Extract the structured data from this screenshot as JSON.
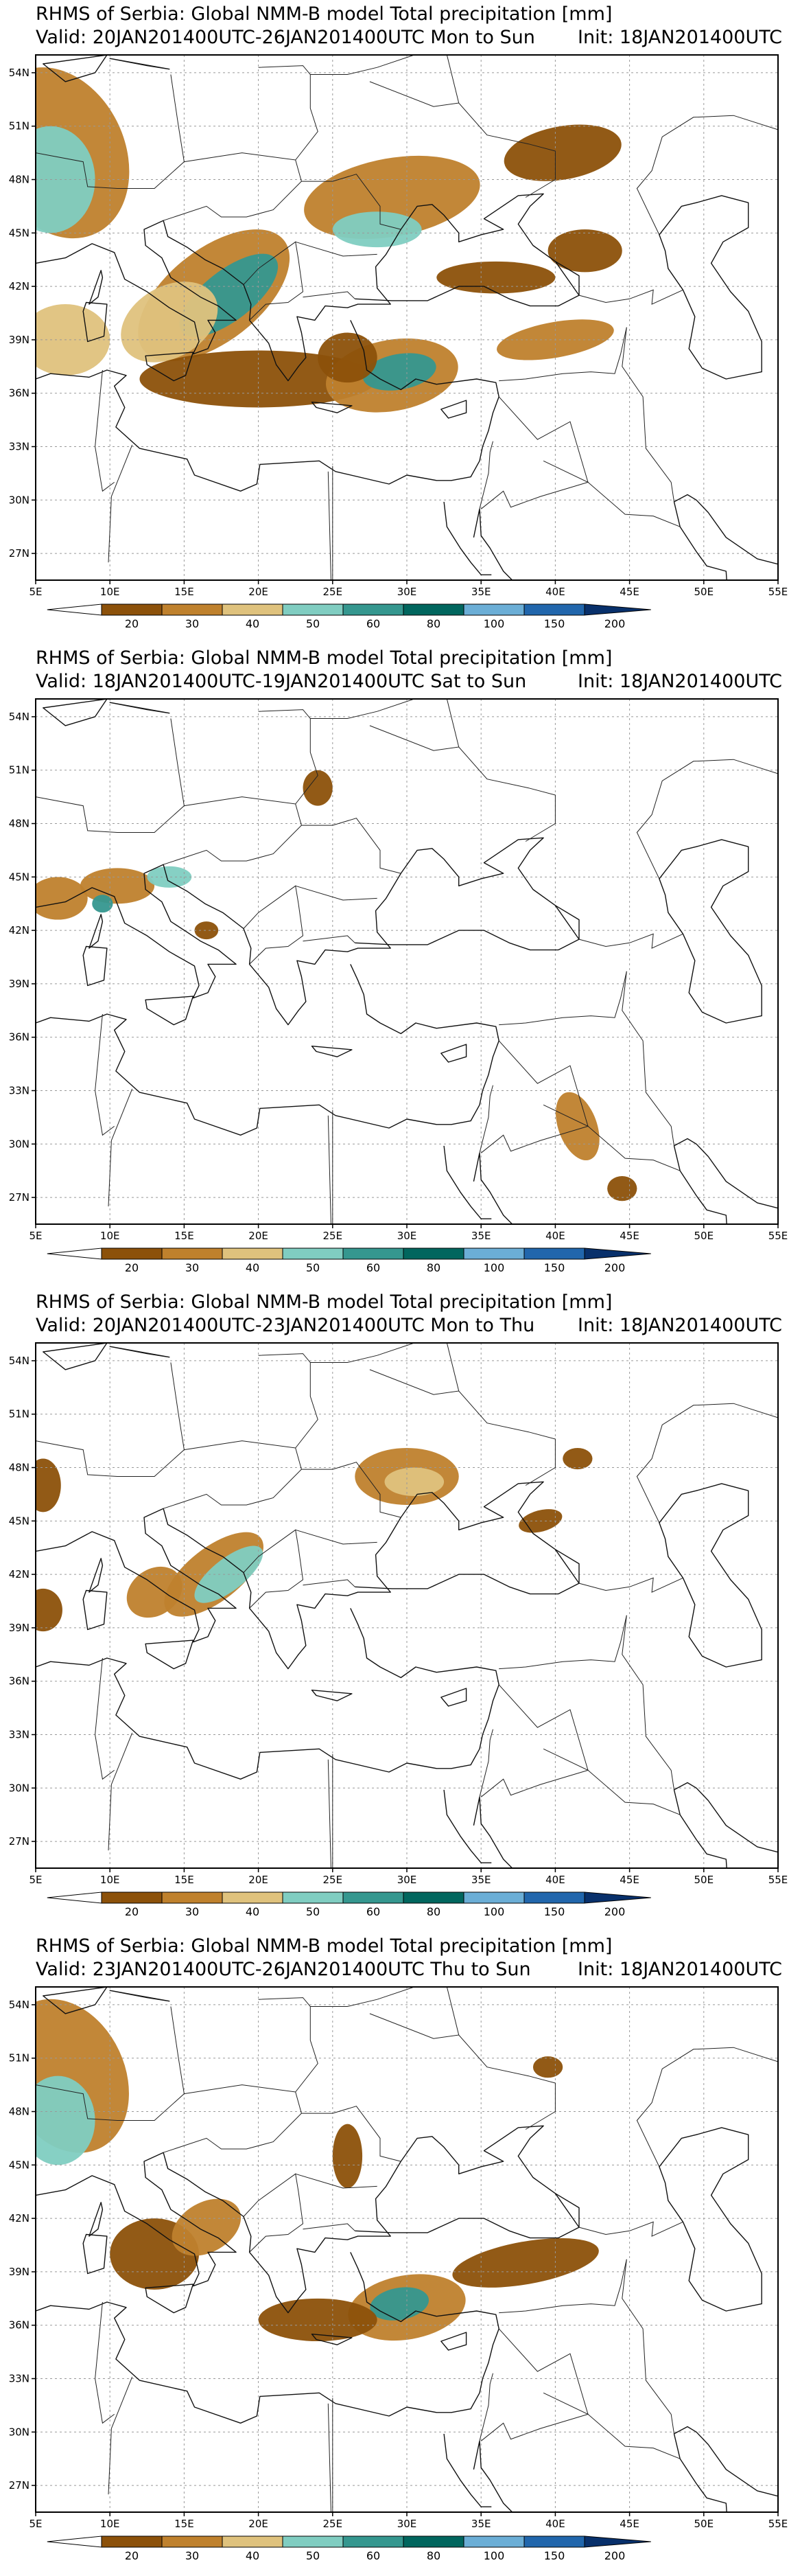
{
  "panels": [
    {
      "title": "RHMS of Serbia: Global NMM-B model Total precipitation [mm]",
      "valid": "Valid: 20JAN201400UTC-26JAN201400UTC Mon to Sun",
      "init": "Init: 18JAN201400UTC",
      "blobs": [
        {
          "lon": 6.5,
          "lat": 49.5,
          "rx": 4.5,
          "ry": 5.0,
          "rot": -25,
          "level": 2
        },
        {
          "lon": 6.0,
          "lat": 48.0,
          "rx": 3.0,
          "ry": 3.0,
          "rot": 0,
          "level": 4
        },
        {
          "lon": 7.0,
          "lat": 39.0,
          "rx": 3.0,
          "ry": 2.0,
          "rot": 0,
          "level": 3
        },
        {
          "lon": 17.0,
          "lat": 41.5,
          "rx": 6.0,
          "ry": 2.6,
          "rot": -38,
          "level": 2
        },
        {
          "lon": 18.0,
          "lat": 41.5,
          "rx": 4.0,
          "ry": 1.4,
          "rot": -38,
          "level": 5
        },
        {
          "lon": 14.0,
          "lat": 40.0,
          "rx": 3.5,
          "ry": 2.0,
          "rot": -30,
          "level": 3
        },
        {
          "lon": 20.0,
          "lat": 36.8,
          "rx": 8.0,
          "ry": 1.6,
          "rot": 0,
          "level": 1
        },
        {
          "lon": 29.0,
          "lat": 37.0,
          "rx": 4.5,
          "ry": 2.0,
          "rot": -10,
          "level": 2
        },
        {
          "lon": 29.5,
          "lat": 37.2,
          "rx": 2.5,
          "ry": 1.0,
          "rot": -10,
          "level": 5
        },
        {
          "lon": 29.0,
          "lat": 47.0,
          "rx": 6.0,
          "ry": 2.2,
          "rot": -10,
          "level": 2
        },
        {
          "lon": 28.0,
          "lat": 45.2,
          "rx": 3.0,
          "ry": 1.0,
          "rot": 0,
          "level": 4
        },
        {
          "lon": 40.5,
          "lat": 49.5,
          "rx": 4.0,
          "ry": 1.5,
          "rot": -10,
          "level": 1
        },
        {
          "lon": 36.0,
          "lat": 42.5,
          "rx": 4.0,
          "ry": 0.9,
          "rot": 0,
          "level": 1
        },
        {
          "lon": 40.0,
          "lat": 39.0,
          "rx": 4.0,
          "ry": 1.0,
          "rot": -10,
          "level": 2
        },
        {
          "lon": 42.0,
          "lat": 44.0,
          "rx": 2.5,
          "ry": 1.2,
          "rot": 0,
          "level": 1
        },
        {
          "lon": 26.0,
          "lat": 38.0,
          "rx": 2.0,
          "ry": 1.4,
          "rot": 0,
          "level": 1
        }
      ]
    },
    {
      "title": "RHMS of Serbia: Global NMM-B model Total precipitation [mm]",
      "valid": "Valid: 18JAN201400UTC-19JAN201400UTC Sat to Sun",
      "init": "Init: 18JAN201400UTC",
      "blobs": [
        {
          "lon": 6.5,
          "lat": 43.8,
          "rx": 2.0,
          "ry": 1.2,
          "rot": 0,
          "level": 2
        },
        {
          "lon": 10.5,
          "lat": 44.5,
          "rx": 2.5,
          "ry": 1.0,
          "rot": 0,
          "level": 2
        },
        {
          "lon": 14.0,
          "lat": 45.0,
          "rx": 1.5,
          "ry": 0.6,
          "rot": 0,
          "level": 4
        },
        {
          "lon": 9.5,
          "lat": 43.5,
          "rx": 0.7,
          "ry": 0.5,
          "rot": 0,
          "level": 5
        },
        {
          "lon": 16.5,
          "lat": 42.0,
          "rx": 0.8,
          "ry": 0.5,
          "rot": 0,
          "level": 1
        },
        {
          "lon": 24.0,
          "lat": 50.0,
          "rx": 1.0,
          "ry": 1.0,
          "rot": 0,
          "level": 1
        },
        {
          "lon": 41.5,
          "lat": 31.0,
          "rx": 1.3,
          "ry": 2.0,
          "rot": -20,
          "level": 2
        },
        {
          "lon": 44.5,
          "lat": 27.5,
          "rx": 1.0,
          "ry": 0.7,
          "rot": 0,
          "level": 1
        }
      ]
    },
    {
      "title": "RHMS of Serbia: Global NMM-B model Total precipitation [mm]",
      "valid": "Valid: 20JAN201400UTC-23JAN201400UTC Mon to Thu",
      "init": "Init: 18JAN201400UTC",
      "blobs": [
        {
          "lon": 5.5,
          "lat": 47.0,
          "rx": 1.2,
          "ry": 1.5,
          "rot": 0,
          "level": 1
        },
        {
          "lon": 5.5,
          "lat": 40.0,
          "rx": 1.3,
          "ry": 1.2,
          "rot": 0,
          "level": 1
        },
        {
          "lon": 17.0,
          "lat": 42.0,
          "rx": 4.0,
          "ry": 1.5,
          "rot": -38,
          "level": 2
        },
        {
          "lon": 18.0,
          "lat": 42.0,
          "rx": 2.8,
          "ry": 0.9,
          "rot": -38,
          "level": 4
        },
        {
          "lon": 13.0,
          "lat": 41.0,
          "rx": 2.0,
          "ry": 1.3,
          "rot": -35,
          "level": 2
        },
        {
          "lon": 30.0,
          "lat": 47.5,
          "rx": 3.5,
          "ry": 1.6,
          "rot": 0,
          "level": 2
        },
        {
          "lon": 30.5,
          "lat": 47.2,
          "rx": 2.0,
          "ry": 0.8,
          "rot": 0,
          "level": 3
        },
        {
          "lon": 41.5,
          "lat": 48.5,
          "rx": 1.0,
          "ry": 0.6,
          "rot": 0,
          "level": 1
        },
        {
          "lon": 39.0,
          "lat": 45.0,
          "rx": 1.5,
          "ry": 0.6,
          "rot": -15,
          "level": 1
        }
      ]
    },
    {
      "title": "RHMS of Serbia: Global NMM-B model Total precipitation [mm]",
      "valid": "Valid: 23JAN201400UTC-26JAN201400UTC Thu to Sun",
      "init": "Init: 18JAN201400UTC",
      "blobs": [
        {
          "lon": 7.0,
          "lat": 50.0,
          "rx": 4.0,
          "ry": 4.5,
          "rot": -25,
          "level": 2
        },
        {
          "lon": 6.5,
          "lat": 47.5,
          "rx": 2.5,
          "ry": 2.5,
          "rot": 0,
          "level": 4
        },
        {
          "lon": 13.0,
          "lat": 40.0,
          "rx": 3.0,
          "ry": 2.0,
          "rot": 0,
          "level": 1
        },
        {
          "lon": 16.5,
          "lat": 41.5,
          "rx": 2.5,
          "ry": 1.4,
          "rot": -30,
          "level": 2
        },
        {
          "lon": 30.0,
          "lat": 37.0,
          "rx": 4.0,
          "ry": 1.8,
          "rot": -10,
          "level": 2
        },
        {
          "lon": 29.5,
          "lat": 37.2,
          "rx": 2.0,
          "ry": 0.9,
          "rot": -10,
          "level": 5
        },
        {
          "lon": 38.0,
          "lat": 39.5,
          "rx": 5.0,
          "ry": 1.2,
          "rot": -10,
          "level": 1
        },
        {
          "lon": 26.0,
          "lat": 45.5,
          "rx": 1.0,
          "ry": 1.8,
          "rot": 0,
          "level": 1
        },
        {
          "lon": 39.5,
          "lat": 50.5,
          "rx": 1.0,
          "ry": 0.6,
          "rot": 0,
          "level": 1
        },
        {
          "lon": 24.0,
          "lat": 36.3,
          "rx": 4.0,
          "ry": 1.2,
          "rot": 0,
          "level": 1
        }
      ]
    }
  ],
  "map": {
    "lon_range": [
      5,
      55
    ],
    "lat_range": [
      25.5,
      55
    ],
    "lon_ticks": [
      "5E",
      "10E",
      "15E",
      "20E",
      "25E",
      "30E",
      "35E",
      "40E",
      "45E",
      "50E",
      "55E"
    ],
    "lat_ticks": [
      "27N",
      "30N",
      "33N",
      "36N",
      "39N",
      "42N",
      "45N",
      "48N",
      "51N",
      "54N"
    ]
  },
  "colorbar": {
    "labels": [
      "20",
      "30",
      "40",
      "50",
      "60",
      "80",
      "100",
      "150",
      "200"
    ],
    "colors": [
      "#8c510a",
      "#bf812d",
      "#dfc27d",
      "#80cdc1",
      "#35978f",
      "#01665e",
      "#6baed6",
      "#2166ac",
      "#08306b"
    ]
  }
}
